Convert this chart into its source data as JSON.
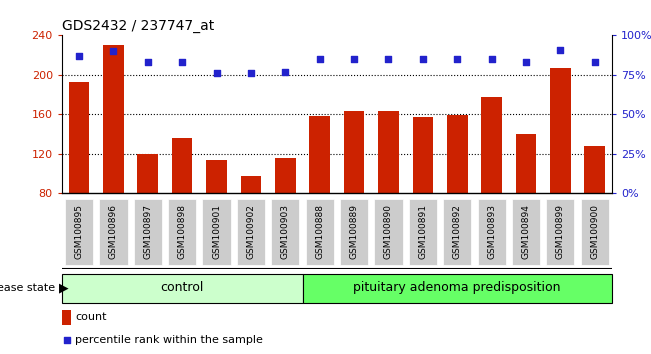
{
  "title": "GDS2432 / 237747_at",
  "samples": [
    "GSM100895",
    "GSM100896",
    "GSM100897",
    "GSM100898",
    "GSM100901",
    "GSM100902",
    "GSM100903",
    "GSM100888",
    "GSM100889",
    "GSM100890",
    "GSM100891",
    "GSM100892",
    "GSM100893",
    "GSM100894",
    "GSM100899",
    "GSM100900"
  ],
  "counts": [
    193,
    230,
    120,
    136,
    113,
    97,
    115,
    158,
    163,
    163,
    157,
    159,
    177,
    140,
    207,
    128
  ],
  "percentiles": [
    87,
    90,
    83,
    83,
    76,
    76,
    77,
    85,
    85,
    85,
    85,
    85,
    85,
    83,
    91,
    83
  ],
  "bar_color": "#CC2200",
  "dot_color": "#2222CC",
  "ylim_left": [
    80,
    240
  ],
  "ylim_right": [
    0,
    100
  ],
  "yticks_left": [
    80,
    120,
    160,
    200,
    240
  ],
  "yticks_right": [
    0,
    25,
    50,
    75,
    100
  ],
  "ylabel_right_labels": [
    "0%",
    "25%",
    "50%",
    "75%",
    "100%"
  ],
  "grid_values": [
    120,
    160,
    200
  ],
  "control_color": "#CCFFCC",
  "pituitary_color": "#66FF66",
  "label_count": "count",
  "label_percentile": "percentile rank within the sample",
  "disease_state_label": "disease state",
  "control_label": "control",
  "pituitary_label": "pituitary adenoma predisposition",
  "n_control": 7,
  "n_pituitary": 9,
  "bg_color": "#FFFFFF",
  "xtick_box_color": "#CCCCCC",
  "title_fontsize": 10,
  "tick_fontsize": 8,
  "label_fontsize": 8,
  "group_fontsize": 9
}
